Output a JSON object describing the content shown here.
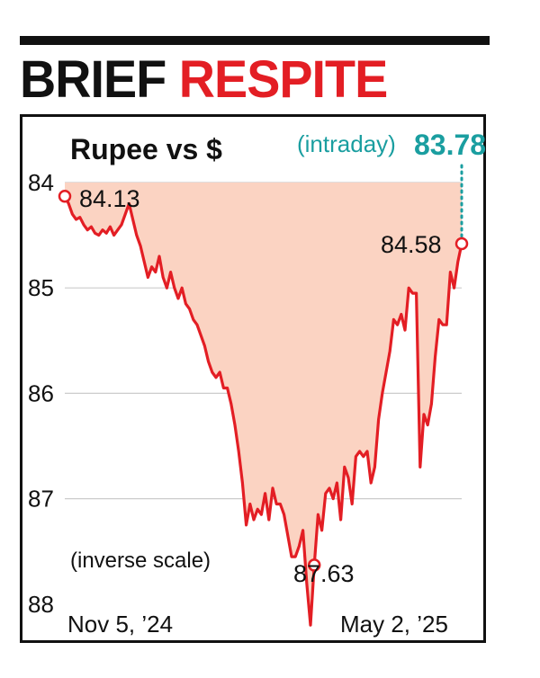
{
  "headline": {
    "word1": "BRIEF",
    "word2": "RESPITE"
  },
  "chart_data": {
    "type": "area",
    "title": "Rupee vs $",
    "note": "(inverse scale)",
    "y_inverted": true,
    "ylim": [
      84,
      88
    ],
    "y_ticks": [
      "84",
      "85",
      "86",
      "87",
      "88"
    ],
    "x_labels": {
      "start": "Nov 5, ’24",
      "end": "May 2, ’25"
    },
    "colors": {
      "line": "#e31e24",
      "fill": "#fbd3c2",
      "accent": "#1a9ea0",
      "grid": "#cccccc"
    },
    "series": [
      {
        "values": [
          84.13,
          84.2,
          84.3,
          84.35,
          84.33,
          84.4,
          84.45,
          84.42,
          84.48,
          84.5,
          84.45,
          84.48,
          84.42,
          84.5,
          84.45,
          84.4,
          84.3,
          84.2,
          84.35,
          84.5,
          84.6,
          84.75,
          84.9,
          84.8,
          84.85,
          84.7,
          84.9,
          85.0,
          84.85,
          85.0,
          85.1,
          85.0,
          85.15,
          85.2,
          85.3,
          85.35,
          85.45,
          85.55,
          85.7,
          85.8,
          85.85,
          85.8,
          85.95,
          85.95,
          86.1,
          86.3,
          86.55,
          86.85,
          87.25,
          87.05,
          87.2,
          87.1,
          87.15,
          86.95,
          87.2,
          86.9,
          87.05,
          87.05,
          87.15,
          87.35,
          87.55,
          87.55,
          87.45,
          87.3,
          87.8,
          88.2,
          87.63,
          87.15,
          87.3,
          86.95,
          86.9,
          87.0,
          86.85,
          87.2,
          86.7,
          86.8,
          87.05,
          86.6,
          86.55,
          86.6,
          86.55,
          86.85,
          86.7,
          86.25,
          86.0,
          85.8,
          85.6,
          85.3,
          85.35,
          85.25,
          85.4,
          85.0,
          85.05,
          85.05,
          86.7,
          86.2,
          86.3,
          86.1,
          85.65,
          85.3,
          85.35,
          85.35,
          84.85,
          85.0,
          84.75,
          84.58
        ]
      }
    ],
    "annotations": {
      "start_value": "84.13",
      "low_value": "87.63",
      "end_value": "84.58",
      "intraday_label": "(intraday)",
      "intraday_value": "83.78"
    }
  }
}
